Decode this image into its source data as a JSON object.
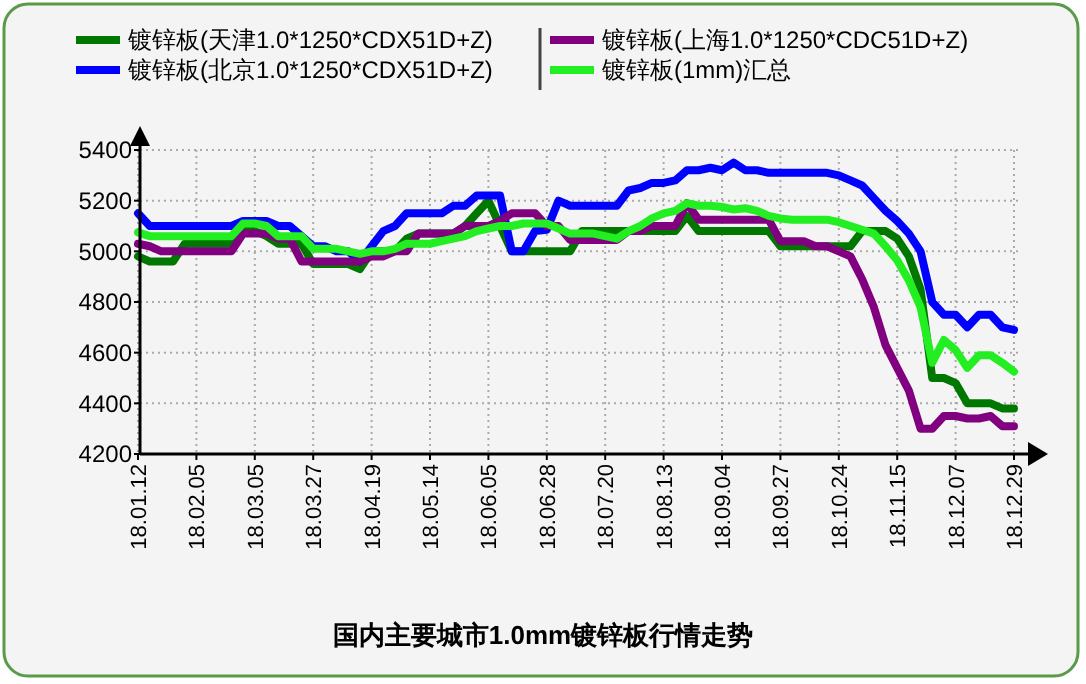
{
  "chart_data": {
    "type": "line",
    "title": "国内主要城市1.0mm镀锌板行情走势",
    "categories": [
      "18.01.12",
      null,
      null,
      null,
      null,
      "18.02.05",
      null,
      null,
      null,
      null,
      "18.03.05",
      null,
      null,
      null,
      null,
      "18.03.27",
      null,
      null,
      null,
      null,
      "18.04.19",
      null,
      null,
      null,
      null,
      "18.05.14",
      null,
      null,
      null,
      null,
      "18.06.05",
      null,
      null,
      null,
      null,
      "18.06.28",
      null,
      null,
      null,
      null,
      "18.07.20",
      null,
      null,
      null,
      null,
      "18.08.13",
      null,
      null,
      null,
      null,
      "18.09.04",
      null,
      null,
      null,
      null,
      "18.09.27",
      null,
      null,
      null,
      null,
      "18.10.24",
      null,
      null,
      null,
      null,
      "18.11.15",
      null,
      null,
      null,
      null,
      "18.12.07",
      null,
      null,
      null,
      null,
      "18.12.29"
    ],
    "series": [
      {
        "name": "镀锌板(天津1.0*1250*CDX51D+Z)",
        "color": "#007800",
        "values": [
          4980,
          4960,
          4960,
          4960,
          5030,
          5030,
          5030,
          5030,
          5030,
          5080,
          5080,
          5060,
          5030,
          5030,
          5030,
          4950,
          4950,
          4950,
          4950,
          4930,
          5000,
          5000,
          5000,
          5050,
          5070,
          5070,
          5070,
          5070,
          5100,
          5150,
          5200,
          5100,
          5000,
          5000,
          5000,
          5000,
          5000,
          5000,
          5080,
          5080,
          5080,
          5080,
          5080,
          5080,
          5080,
          5080,
          5080,
          5140,
          5080,
          5080,
          5080,
          5080,
          5080,
          5080,
          5080,
          5020,
          5020,
          5020,
          5020,
          5020,
          5020,
          5020,
          5080,
          5080,
          5080,
          5050,
          4980,
          4850,
          4500,
          4500,
          4480,
          4400,
          4400,
          4400,
          4380,
          4380
        ]
      },
      {
        "name": "镀锌板(北京1.0*1250*CDX51D+Z)",
        "color": "#0000ff",
        "values": [
          5150,
          5100,
          5100,
          5100,
          5100,
          5100,
          5100,
          5100,
          5100,
          5120,
          5120,
          5120,
          5100,
          5100,
          5060,
          5020,
          5020,
          5000,
          5000,
          4960,
          5020,
          5080,
          5100,
          5150,
          5150,
          5150,
          5150,
          5180,
          5180,
          5220,
          5220,
          5220,
          5000,
          5000,
          5080,
          5085,
          5200,
          5180,
          5180,
          5180,
          5180,
          5180,
          5240,
          5250,
          5270,
          5270,
          5280,
          5320,
          5320,
          5330,
          5320,
          5350,
          5320,
          5320,
          5310,
          5310,
          5310,
          5310,
          5310,
          5310,
          5300,
          5280,
          5260,
          5210,
          5160,
          5120,
          5070,
          5000,
          4800,
          4750,
          4750,
          4700,
          4750,
          4750,
          4700,
          4690
        ]
      },
      {
        "name": "镀锌板(上海1.0*1250*CDC51D+Z)",
        "color": "#800080",
        "values": [
          5030,
          5020,
          5000,
          5000,
          5000,
          5000,
          5000,
          5000,
          5000,
          5070,
          5070,
          5070,
          5050,
          5050,
          4960,
          4960,
          4960,
          4960,
          4960,
          4960,
          4980,
          4980,
          5000,
          5000,
          5070,
          5070,
          5070,
          5070,
          5100,
          5100,
          5100,
          5120,
          5150,
          5150,
          5150,
          5100,
          5100,
          5045,
          5045,
          5045,
          5045,
          5045,
          5080,
          5080,
          5100,
          5100,
          5100,
          5190,
          5125,
          5125,
          5125,
          5125,
          5125,
          5125,
          5125,
          5040,
          5040,
          5040,
          5020,
          5020,
          5000,
          4980,
          4890,
          4780,
          4630,
          4540,
          4450,
          4300,
          4300,
          4350,
          4350,
          4340,
          4340,
          4350,
          4310,
          4310
        ]
      },
      {
        "name": "镀锌板(1mm)汇总",
        "color": "#22ee22",
        "values": [
          5075,
          5060,
          5060,
          5060,
          5060,
          5060,
          5060,
          5060,
          5060,
          5110,
          5110,
          5100,
          5060,
          5060,
          5060,
          5010,
          5010,
          5010,
          5000,
          4990,
          5000,
          5000,
          5010,
          5030,
          5030,
          5030,
          5040,
          5050,
          5060,
          5080,
          5090,
          5100,
          5100,
          5110,
          5110,
          5110,
          5090,
          5070,
          5070,
          5070,
          5060,
          5050,
          5080,
          5100,
          5130,
          5150,
          5160,
          5190,
          5180,
          5180,
          5175,
          5165,
          5170,
          5160,
          5140,
          5130,
          5125,
          5125,
          5125,
          5125,
          5115,
          5100,
          5085,
          5070,
          5020,
          4965,
          4885,
          4780,
          4560,
          4650,
          4610,
          4540,
          4590,
          4590,
          4560,
          4525
        ]
      }
    ],
    "ylim": [
      4200,
      5400
    ],
    "yticks": [
      4200,
      4400,
      4600,
      4800,
      5000,
      5200,
      5400
    ],
    "grid": true,
    "legend": "top",
    "marker": "none",
    "line_style": "solid"
  }
}
